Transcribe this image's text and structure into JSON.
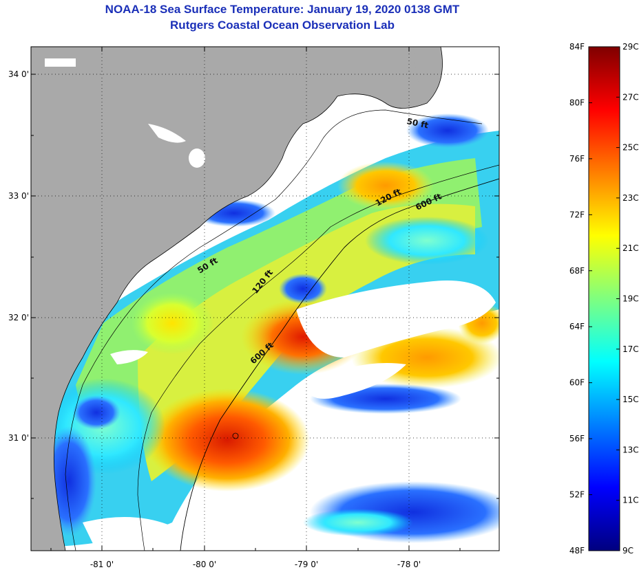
{
  "title": {
    "line1": "NOAA-18 Sea Surface Temperature:  January 19, 2020 0138 GMT",
    "line2": "Rutgers Coastal Ocean Observation Lab"
  },
  "map": {
    "lat_ticks": [
      "34 0'",
      "33 0'",
      "32 0'",
      "31 0'"
    ],
    "lon_ticks": [
      "-81 0'",
      "-80 0'",
      "-79 0'",
      "-78 0'"
    ],
    "contours": [
      "50 ft",
      "50 ft",
      "120 ft",
      "120 ft",
      "600 ft",
      "600 ft"
    ],
    "colors": {
      "land": "#a9a9a9",
      "no_data": "#ffffff",
      "frame": "#000000"
    }
  },
  "colorbar": {
    "f_labels": [
      "84F",
      "80F",
      "76F",
      "72F",
      "68F",
      "64F",
      "60F",
      "56F",
      "52F",
      "48F"
    ],
    "c_labels": [
      "29C",
      "27C",
      "25C",
      "23C",
      "21C",
      "19C",
      "17C",
      "15C",
      "13C",
      "11C",
      "9C"
    ],
    "colormap": [
      "#00007f",
      "#0000ff",
      "#007fff",
      "#00ffff",
      "#7fff7f",
      "#ffff00",
      "#ff7f00",
      "#ff0000",
      "#7f0000"
    ]
  }
}
